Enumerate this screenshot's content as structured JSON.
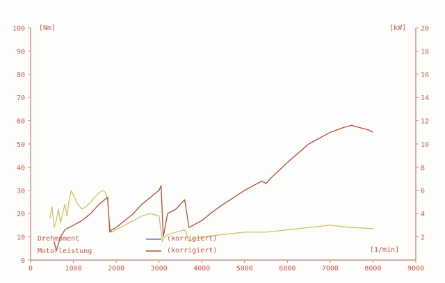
{
  "chart_data": {
    "type": "line",
    "title": "",
    "xlabel": "[1/min]",
    "ylabel_left": "[Nm]",
    "ylabel_right": "[kW]",
    "xlim": [
      0,
      9000
    ],
    "ylim_left": [
      0,
      100
    ],
    "ylim_right": [
      0,
      20
    ],
    "x_ticks": [
      "0",
      "1000",
      "2000",
      "3000",
      "4000",
      "5000",
      "6000",
      "7000",
      "8000",
      "9000"
    ],
    "y_left_ticks": [
      "0",
      "10",
      "20",
      "30",
      "40",
      "50",
      "60",
      "70",
      "80",
      "90",
      "100"
    ],
    "y_right_ticks": [
      "2",
      "4",
      "6",
      "8",
      "10",
      "12",
      "14",
      "16",
      "18",
      "20"
    ],
    "grid": false,
    "legend": [
      {
        "label": "Drehmoment",
        "suffix": "(korrigiert)",
        "color": "#8a6fa8"
      },
      {
        "label": "Motorleistung",
        "suffix": "(korrigiert)",
        "color": "#b5483a"
      }
    ],
    "series": [
      {
        "name": "Drehmoment",
        "axis": "left",
        "color": "#c9c46a",
        "x": [
          450,
          500,
          550,
          600,
          650,
          700,
          750,
          800,
          850,
          900,
          950,
          1000,
          1100,
          1200,
          1300,
          1400,
          1500,
          1600,
          1700,
          1750,
          1800,
          1850,
          1900,
          2000,
          2200,
          2400,
          2600,
          2800,
          3000,
          3050,
          3080,
          3100,
          3200,
          3400,
          3600,
          3650,
          3700,
          3800,
          4000,
          4500,
          5000,
          5500,
          6000,
          6500,
          7000,
          7500,
          8000
        ],
        "y": [
          18,
          23,
          14,
          17,
          22,
          16,
          20,
          24,
          19,
          26,
          30,
          28,
          24,
          22,
          23,
          25,
          27,
          29,
          30,
          29,
          26,
          14,
          12,
          13,
          15,
          17,
          19,
          20,
          19,
          12,
          8,
          9,
          11,
          12,
          13,
          11,
          8,
          9,
          10,
          11,
          12,
          12,
          13,
          14,
          15,
          14,
          13.5
        ]
      },
      {
        "name": "Motorleistung",
        "axis": "left",
        "color": "#b5483a",
        "x": [
          550,
          600,
          650,
          700,
          800,
          900,
          1000,
          1200,
          1400,
          1600,
          1800,
          1850,
          1900,
          2000,
          2200,
          2400,
          2600,
          2800,
          3000,
          3050,
          3100,
          3200,
          3400,
          3600,
          3700,
          3800,
          4000,
          4200,
          4500,
          5000,
          5400,
          5500,
          5600,
          6000,
          6500,
          7000,
          7300,
          7500,
          7700,
          7900,
          8000
        ],
        "y": [
          8,
          4,
          7,
          10,
          13,
          14,
          15,
          17,
          20,
          24,
          27,
          12,
          13,
          14,
          17,
          20,
          24,
          27,
          30,
          32,
          10,
          20,
          22,
          26,
          14,
          15,
          17,
          20,
          24,
          30,
          34,
          33,
          35,
          42,
          50,
          55,
          57,
          58,
          57,
          56,
          55
        ]
      }
    ]
  }
}
